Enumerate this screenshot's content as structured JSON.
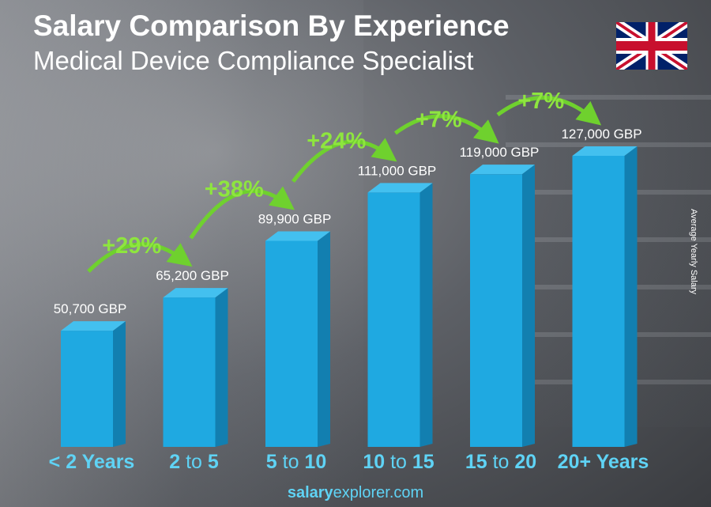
{
  "title": "Salary Comparison By Experience",
  "subtitle": "Medical Device Compliance Specialist",
  "ylabel": "Average Yearly Salary",
  "footer": {
    "bold": "salary",
    "normal": "explorer",
    "suffix": ".com"
  },
  "flag": "united-kingdom-flag",
  "colors": {
    "bar_front": "#1fa9e1",
    "bar_side": "#127fb0",
    "bar_top": "#43c0ef",
    "percent": "#8ee53f",
    "category": "#5fd3f5"
  },
  "chart_data": {
    "type": "bar",
    "title": "Salary Comparison By Experience",
    "ylabel": "Average Yearly Salary",
    "categories": [
      [
        "< 2 Years"
      ],
      [
        "2",
        "to",
        "5"
      ],
      [
        "5",
        "to",
        "10"
      ],
      [
        "10",
        "to",
        "15"
      ],
      [
        "15",
        "to",
        "20"
      ],
      [
        "20+ Years"
      ]
    ],
    "values": [
      50700,
      65200,
      89900,
      111000,
      119000,
      127000
    ],
    "value_labels": [
      "50,700 GBP",
      "65,200 GBP",
      "89,900 GBP",
      "111,000 GBP",
      "119,000 GBP",
      "127,000 GBP"
    ],
    "increases": [
      "+29%",
      "+38%",
      "+24%",
      "+7%",
      "+7%"
    ],
    "unit": "GBP"
  }
}
